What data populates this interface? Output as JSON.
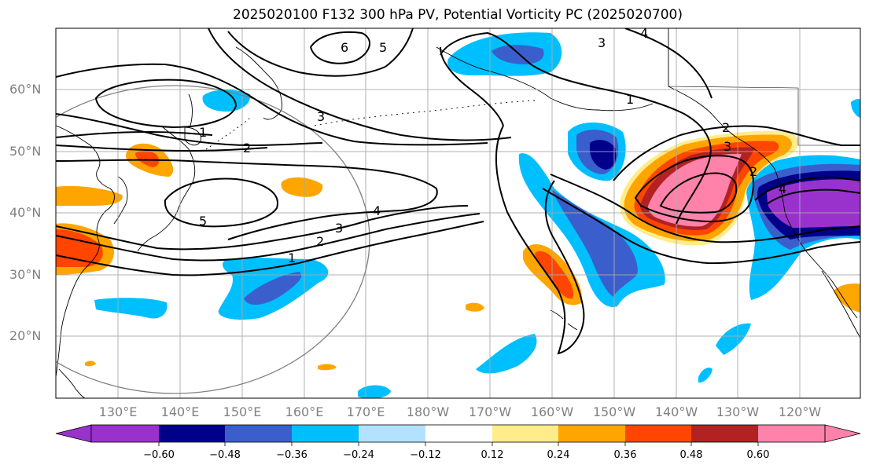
{
  "title": "2025020100 F132 300 hPa PV, Potential Vorticity PC (2025020700)",
  "lat_labels": [
    "60°N",
    "50°N",
    "40°N",
    "30°N",
    "20°N"
  ],
  "lon_labels": [
    "130°E",
    "140°E",
    "150°E",
    "160°E",
    "170°E",
    "180°W",
    "170°W",
    "160°W",
    "150°W",
    "140°W",
    "130°W",
    "120°W"
  ],
  "contour_labels": [
    "6",
    "5",
    "3",
    "4",
    "3",
    "1",
    "1",
    "2",
    "2",
    "5",
    "4",
    "3",
    "2",
    "1",
    "3",
    "2",
    "4"
  ],
  "colorbar": {
    "ticks": [
      "−0.60",
      "−0.48",
      "−0.36",
      "−0.24",
      "−0.12",
      "0.12",
      "0.24",
      "0.36",
      "0.48",
      "0.60"
    ],
    "colors": [
      "#9932CC",
      "#00008B",
      "#3A5FCD",
      "#00BFFF",
      "#B2E2FF",
      "#FFFFFF",
      "#FFEC8B",
      "#FFA500",
      "#FF4500",
      "#B22222",
      "#FF82AB"
    ]
  },
  "colors": {
    "ocean_bg": "#FFFFFF",
    "coast": "#000000",
    "grid": "#A9A9A9",
    "contour": "#000000",
    "range_ring": "#808080"
  }
}
